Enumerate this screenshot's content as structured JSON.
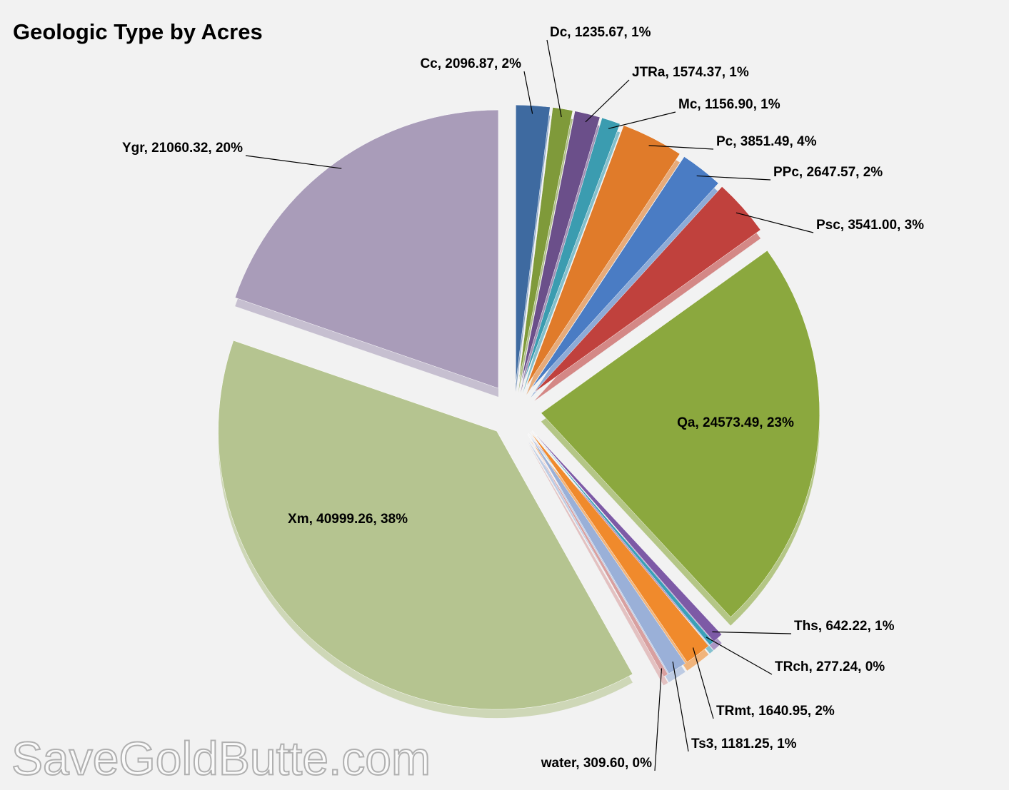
{
  "chart_data": {
    "type": "pie",
    "title": "Geologic Type by Acres",
    "watermark": "SaveGoldButte.com",
    "values": [
      2096.87,
      1235.67,
      1574.37,
      1156.9,
      3851.49,
      2647.57,
      3541.0,
      24573.49,
      642.22,
      277.24,
      1640.95,
      1181.25,
      309.6,
      40999.26,
      21060.32
    ],
    "value_labels": [
      "Cc, 2096.87, 2%",
      "Dc, 1235.67, 1%",
      "JTRa, 1574.37, 1%",
      "Mc, 1156.90, 1%",
      "Pc, 3851.49, 4%",
      "PPc, 2647.57, 2%",
      "Psc, 3541.00, 3%",
      "Qa, 24573.49, 23%",
      "Ths, 642.22, 1%",
      "TRch, 277.24, 0%",
      "TRmt, 1640.95, 2%",
      "Ts3, 1181.25, 1%",
      "water, 309.60, 0%",
      "Xm, 40999.26, 38%",
      "Ygr, 21060.32, 20%"
    ],
    "colors": [
      "#3e6aa0",
      "#7f9a3a",
      "#6b4f8a",
      "#3b9cb0",
      "#e07b2a",
      "#4a7cc4",
      "#c0413d",
      "#8ba83e",
      "#7d5aa6",
      "#3aa0b8",
      "#f08a2c",
      "#9ab0d8",
      "#d8a0a0",
      "#b5c490",
      "#a99cb9"
    ]
  }
}
